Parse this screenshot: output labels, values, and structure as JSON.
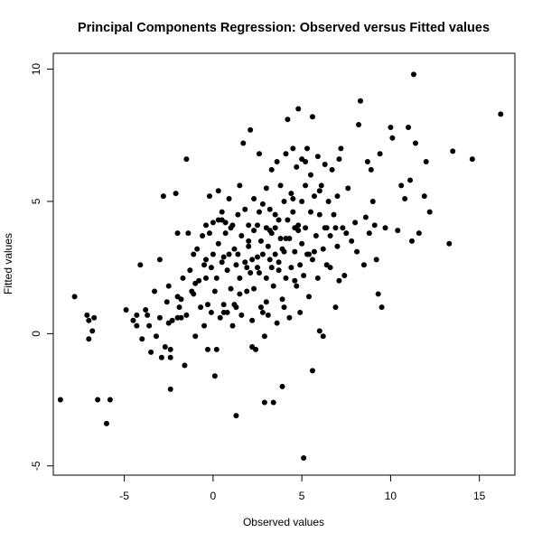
{
  "chart_data": {
    "type": "scatter",
    "title": "Principal Components Regression: Observed versus Fitted values",
    "xlabel": "Observed values",
    "ylabel": "Fitted values",
    "xlim": [
      -9.0,
      17.0
    ],
    "ylim": [
      -5.35,
      10.6
    ],
    "xticks": [
      -5,
      0,
      5,
      10,
      15
    ],
    "yticks": [
      -5,
      0,
      5,
      10
    ],
    "grid": false,
    "legend": "none",
    "point_color": "#000000",
    "points": [
      [
        -8.6,
        -2.5
      ],
      [
        -7.8,
        1.4
      ],
      [
        -7.1,
        0.7
      ],
      [
        -7.0,
        0.5
      ],
      [
        -7.0,
        -0.2
      ],
      [
        -6.8,
        0.1
      ],
      [
        -6.7,
        0.6
      ],
      [
        -6.5,
        -2.5
      ],
      [
        -6.0,
        -3.4
      ],
      [
        -5.8,
        -2.5
      ],
      [
        -4.9,
        0.9
      ],
      [
        -4.5,
        0.5
      ],
      [
        -4.3,
        0.7
      ],
      [
        -4.3,
        0.3
      ],
      [
        -4.1,
        2.6
      ],
      [
        -4.0,
        -0.2
      ],
      [
        -3.8,
        0.9
      ],
      [
        -3.7,
        0.7
      ],
      [
        -3.6,
        0.3
      ],
      [
        -3.5,
        -0.7
      ],
      [
        -3.3,
        1.6
      ],
      [
        -3.2,
        -0.1
      ],
      [
        -3.0,
        2.8
      ],
      [
        -3.0,
        0.6
      ],
      [
        -2.9,
        -0.9
      ],
      [
        -2.8,
        5.2
      ],
      [
        -2.7,
        -0.5
      ],
      [
        -2.6,
        1.2
      ],
      [
        -2.5,
        1.8
      ],
      [
        -2.5,
        0.4
      ],
      [
        -2.4,
        -0.6
      ],
      [
        -2.4,
        -0.9
      ],
      [
        -2.4,
        -2.1
      ],
      [
        -2.3,
        0.5
      ],
      [
        -2.1,
        5.3
      ],
      [
        -2.0,
        3.8
      ],
      [
        -2.0,
        1.4
      ],
      [
        -1.9,
        1.0
      ],
      [
        -1.8,
        0.6
      ],
      [
        -1.8,
        1.3
      ],
      [
        -1.7,
        2.1
      ],
      [
        -1.6,
        -1.2
      ],
      [
        -1.5,
        6.6
      ],
      [
        -1.5,
        0.7
      ],
      [
        -1.4,
        3.8
      ],
      [
        -1.3,
        2.4
      ],
      [
        -1.2,
        1.6
      ],
      [
        -1.1,
        3.0
      ],
      [
        -1.0,
        1.9
      ],
      [
        -1.0,
        -0.1
      ],
      [
        -0.9,
        3.2
      ],
      [
        -0.8,
        2.0
      ],
      [
        -0.7,
        1.0
      ],
      [
        -0.6,
        3.7
      ],
      [
        -0.5,
        2.6
      ],
      [
        -0.5,
        0.3
      ],
      [
        -0.4,
        4.1
      ],
      [
        -0.4,
        2.8
      ],
      [
        -0.3,
        1.1
      ],
      [
        -0.3,
        -0.6
      ],
      [
        -0.2,
        5.2
      ],
      [
        -0.2,
        3.8
      ],
      [
        -0.1,
        2.5
      ],
      [
        -0.1,
        0.8
      ],
      [
        0.0,
        4.2
      ],
      [
        0.0,
        3.0
      ],
      [
        0.1,
        1.6
      ],
      [
        0.1,
        -1.6
      ],
      [
        0.2,
        -0.6
      ],
      [
        0.2,
        2.1
      ],
      [
        0.3,
        5.4
      ],
      [
        0.3,
        4.3
      ],
      [
        0.3,
        3.4
      ],
      [
        0.4,
        0.6
      ],
      [
        0.5,
        4.6
      ],
      [
        0.5,
        2.7
      ],
      [
        0.6,
        1.1
      ],
      [
        0.7,
        4.2
      ],
      [
        0.7,
        3.8
      ],
      [
        0.8,
        2.4
      ],
      [
        0.8,
        0.8
      ],
      [
        0.9,
        5.1
      ],
      [
        0.9,
        3.0
      ],
      [
        1.0,
        4.0
      ],
      [
        1.0,
        1.7
      ],
      [
        1.1,
        0.3
      ],
      [
        1.2,
        3.2
      ],
      [
        1.3,
        2.6
      ],
      [
        1.3,
        1.0
      ],
      [
        1.3,
        -3.1
      ],
      [
        1.4,
        4.5
      ],
      [
        1.4,
        3.0
      ],
      [
        1.5,
        5.6
      ],
      [
        1.5,
        2.1
      ],
      [
        1.6,
        3.7
      ],
      [
        1.6,
        0.7
      ],
      [
        1.7,
        7.2
      ],
      [
        1.8,
        4.7
      ],
      [
        1.8,
        2.7
      ],
      [
        1.9,
        1.6
      ],
      [
        2.0,
        4.1
      ],
      [
        2.0,
        3.3
      ],
      [
        2.1,
        7.7
      ],
      [
        2.1,
        2.3
      ],
      [
        2.2,
        0.5
      ],
      [
        2.2,
        -0.5
      ],
      [
        2.3,
        5.1
      ],
      [
        2.3,
        3.9
      ],
      [
        2.3,
        1.7
      ],
      [
        2.4,
        -0.6
      ],
      [
        2.5,
        4.1
      ],
      [
        2.5,
        2.9
      ],
      [
        2.6,
        6.8
      ],
      [
        2.6,
        2.3
      ],
      [
        2.7,
        3.5
      ],
      [
        2.7,
        1.0
      ],
      [
        2.8,
        4.9
      ],
      [
        2.8,
        3.0
      ],
      [
        2.9,
        -0.1
      ],
      [
        2.9,
        -2.6
      ],
      [
        3.0,
        5.5
      ],
      [
        3.0,
        4.0
      ],
      [
        3.0,
        2.1
      ],
      [
        3.1,
        3.3
      ],
      [
        3.1,
        0.7
      ],
      [
        3.2,
        4.7
      ],
      [
        3.2,
        2.8
      ],
      [
        3.3,
        6.2
      ],
      [
        3.3,
        3.8
      ],
      [
        3.4,
        1.8
      ],
      [
        3.4,
        -2.6
      ],
      [
        3.5,
        4.5
      ],
      [
        3.5,
        3.0
      ],
      [
        3.6,
        6.5
      ],
      [
        3.6,
        0.4
      ],
      [
        3.7,
        4.3
      ],
      [
        3.7,
        2.4
      ],
      [
        3.8,
        5.6
      ],
      [
        3.8,
        3.6
      ],
      [
        3.9,
        1.3
      ],
      [
        3.9,
        -2.0
      ],
      [
        4.0,
        5.0
      ],
      [
        4.0,
        3.1
      ],
      [
        4.1,
        6.8
      ],
      [
        4.1,
        2.1
      ],
      [
        4.2,
        8.1
      ],
      [
        4.2,
        4.3
      ],
      [
        4.3,
        3.6
      ],
      [
        4.3,
        0.6
      ],
      [
        4.4,
        5.3
      ],
      [
        4.4,
        2.5
      ],
      [
        4.5,
        7.0
      ],
      [
        4.5,
        4.6
      ],
      [
        4.6,
        3.1
      ],
      [
        4.7,
        6.3
      ],
      [
        4.7,
        1.8
      ],
      [
        4.8,
        8.5
      ],
      [
        4.8,
        4.1
      ],
      [
        4.9,
        2.6
      ],
      [
        4.9,
        0.8
      ],
      [
        5.0,
        6.6
      ],
      [
        5.0,
        5.0
      ],
      [
        5.0,
        3.4
      ],
      [
        5.1,
        2.2
      ],
      [
        5.1,
        -4.7
      ],
      [
        5.2,
        5.6
      ],
      [
        5.2,
        4.0
      ],
      [
        5.3,
        7.0
      ],
      [
        5.3,
        3.0
      ],
      [
        5.4,
        1.4
      ],
      [
        5.5,
        6.0
      ],
      [
        5.5,
        4.6
      ],
      [
        5.6,
        8.2
      ],
      [
        5.6,
        2.8
      ],
      [
        5.6,
        -1.4
      ],
      [
        5.7,
        5.2
      ],
      [
        5.8,
        3.7
      ],
      [
        5.9,
        6.7
      ],
      [
        5.9,
        2.1
      ],
      [
        6.0,
        4.5
      ],
      [
        6.0,
        0.1
      ],
      [
        6.1,
        5.6
      ],
      [
        6.2,
        3.2
      ],
      [
        6.2,
        -0.1
      ],
      [
        6.3,
        6.4
      ],
      [
        6.3,
        4.0
      ],
      [
        6.4,
        2.6
      ],
      [
        6.5,
        5.0
      ],
      [
        6.6,
        3.7
      ],
      [
        6.7,
        6.2
      ],
      [
        6.8,
        4.5
      ],
      [
        6.9,
        1.0
      ],
      [
        7.0,
        3.3
      ],
      [
        7.0,
        5.2
      ],
      [
        7.1,
        2.0
      ],
      [
        7.2,
        7.0
      ],
      [
        7.3,
        4.0
      ],
      [
        7.4,
        2.2
      ],
      [
        7.5,
        3.8
      ],
      [
        7.6,
        5.5
      ],
      [
        7.8,
        3.5
      ],
      [
        8.0,
        4.2
      ],
      [
        8.1,
        3.1
      ],
      [
        8.2,
        7.9
      ],
      [
        8.3,
        8.8
      ],
      [
        8.5,
        2.6
      ],
      [
        8.6,
        4.4
      ],
      [
        8.7,
        6.5
      ],
      [
        8.8,
        3.8
      ],
      [
        8.9,
        6.2
      ],
      [
        9.0,
        5.0
      ],
      [
        9.1,
        4.1
      ],
      [
        9.2,
        2.8
      ],
      [
        9.3,
        1.5
      ],
      [
        9.4,
        6.8
      ],
      [
        9.5,
        1.0
      ],
      [
        10.0,
        7.8
      ],
      [
        10.1,
        7.4
      ],
      [
        10.4,
        3.9
      ],
      [
        10.6,
        5.6
      ],
      [
        10.8,
        5.1
      ],
      [
        11.0,
        7.8
      ],
      [
        11.1,
        5.8
      ],
      [
        11.2,
        3.5
      ],
      [
        11.3,
        9.8
      ],
      [
        11.4,
        7.2
      ],
      [
        11.6,
        3.8
      ],
      [
        11.9,
        5.2
      ],
      [
        12.0,
        6.5
      ],
      [
        12.2,
        4.6
      ],
      [
        13.3,
        3.4
      ],
      [
        13.5,
        6.9
      ],
      [
        14.6,
        6.6
      ],
      [
        16.2,
        8.3
      ],
      [
        0.5,
        4.3
      ],
      [
        1.1,
        4.1
      ],
      [
        4.6,
        4.0
      ],
      [
        6.9,
        4.0
      ],
      [
        9.7,
        4.0
      ],
      [
        3.2,
        3.9
      ],
      [
        2.0,
        3.5
      ],
      [
        3.7,
        2.7
      ],
      [
        4.1,
        3.6
      ],
      [
        2.5,
        2.5
      ],
      [
        4.6,
        2.0
      ],
      [
        5.7,
        3.1
      ],
      [
        6.4,
        4.0
      ],
      [
        1.9,
        2.5
      ],
      [
        3.3,
        2.5
      ],
      [
        5.2,
        6.5
      ],
      [
        7.1,
        6.6
      ],
      [
        0.6,
        0.8
      ],
      [
        -0.4,
        2.1
      ],
      [
        1.5,
        1.5
      ],
      [
        2.8,
        0.8
      ],
      [
        3.5,
        4.0
      ],
      [
        4.0,
        1.0
      ],
      [
        5.4,
        3.0
      ],
      [
        6.6,
        2.5
      ],
      [
        2.6,
        4.6
      ],
      [
        3.9,
        3.2
      ],
      [
        4.8,
        3.9
      ],
      [
        6.0,
        5.4
      ],
      [
        1.2,
        1.1
      ],
      [
        2.2,
        2.8
      ],
      [
        -1.1,
        1.5
      ],
      [
        -2.0,
        0.6
      ],
      [
        0.6,
        2.9
      ],
      [
        3.0,
        1.2
      ],
      [
        4.5,
        5.1
      ]
    ]
  }
}
